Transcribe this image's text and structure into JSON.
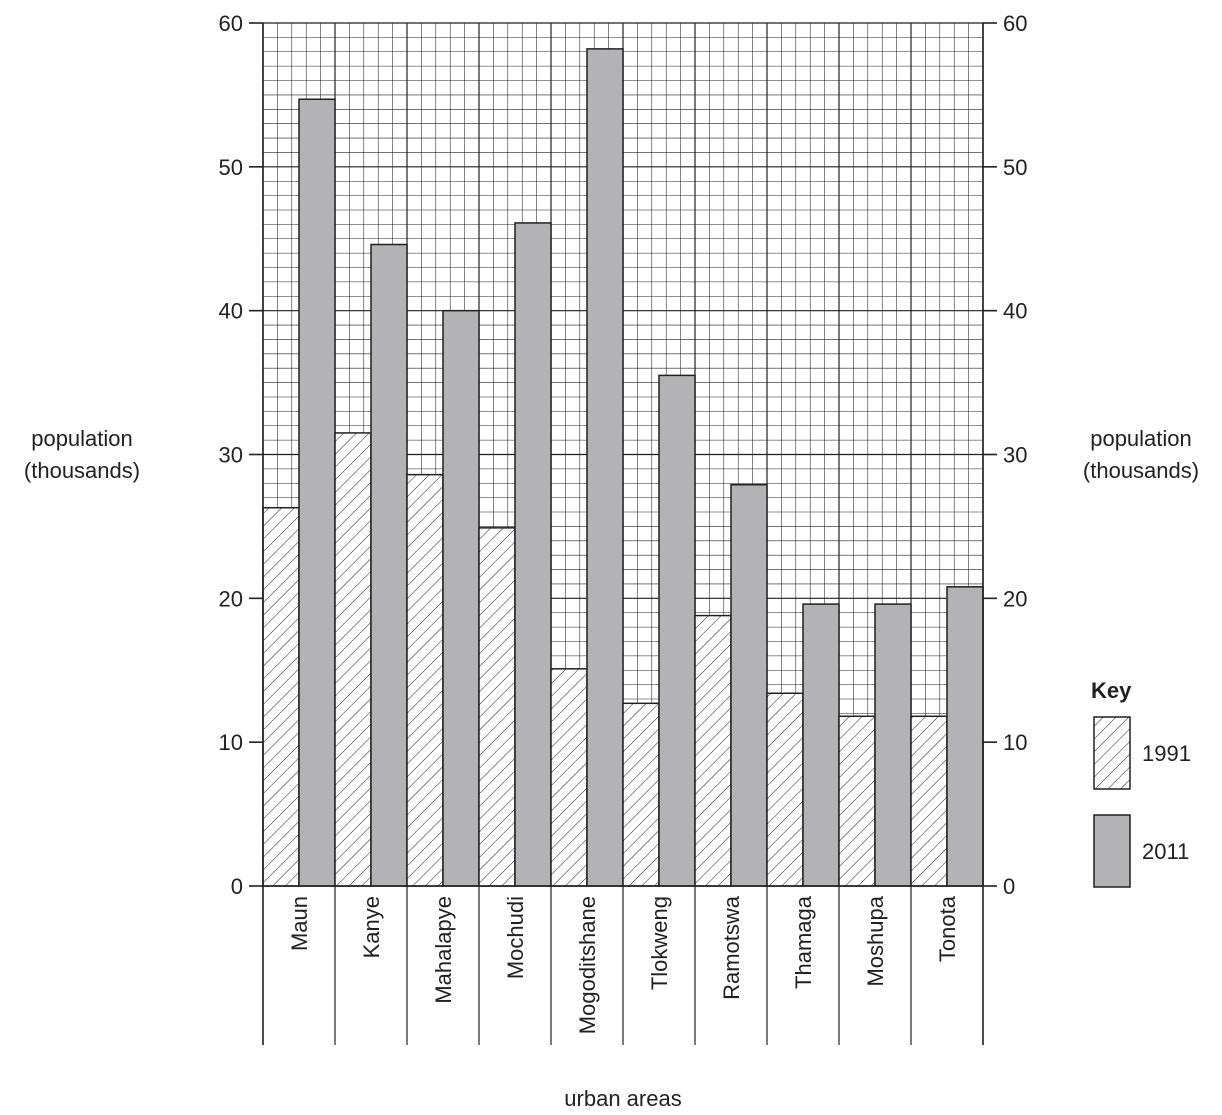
{
  "chart_data": {
    "type": "bar",
    "categories": [
      "Maun",
      "Kanye",
      "Mahalapye",
      "Mochudi",
      "Mogoditshane",
      "Tlokweng",
      "Ramotswa",
      "Thamaga",
      "Moshupa",
      "Tonota"
    ],
    "series": [
      {
        "name": "1991",
        "values": [
          26.3,
          31.5,
          28.6,
          24.9,
          15.1,
          12.7,
          18.8,
          13.4,
          11.8,
          11.8
        ]
      },
      {
        "name": "2011",
        "values": [
          54.7,
          44.6,
          40.0,
          46.1,
          58.2,
          35.5,
          27.9,
          19.6,
          19.6,
          20.8
        ]
      }
    ],
    "xlabel": "urban areas",
    "ylabel_left": [
      "population",
      "(thousands)"
    ],
    "ylabel_right": [
      "population",
      "(thousands)"
    ],
    "yticks": [
      0,
      10,
      20,
      30,
      40,
      50,
      60
    ],
    "ylim": [
      0,
      60
    ],
    "grid": true,
    "legend_title": "Key",
    "legend_position": "right",
    "colors": {
      "bar_2011": "#b3b3b5",
      "outline": "#231f20",
      "grid": "#231f20"
    },
    "fill_styles": {
      "1991": "diagonal-hatch",
      "2011": "solid-grey"
    }
  }
}
